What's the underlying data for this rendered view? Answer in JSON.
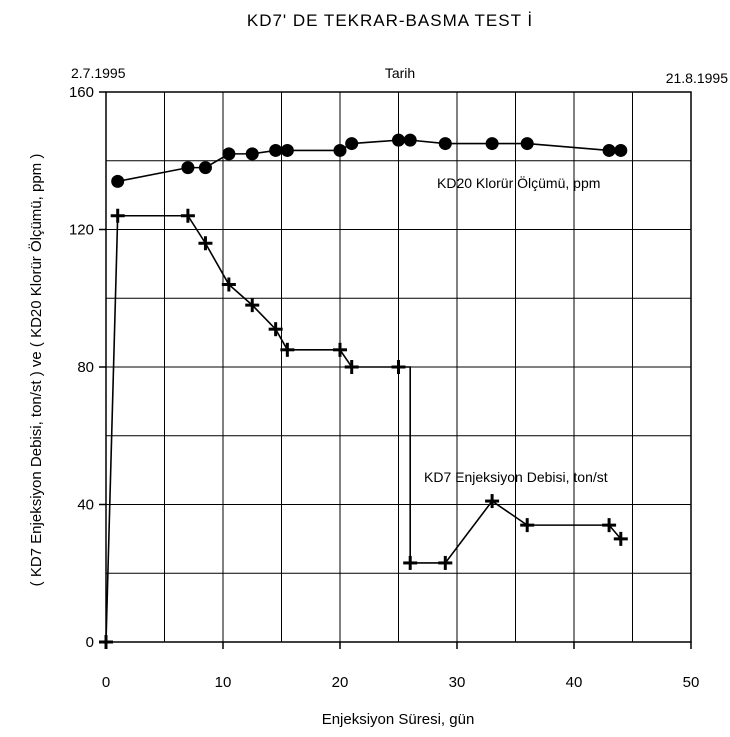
{
  "chart_data": {
    "type": "line",
    "title": "KD7' DE TEKRAR-BASMA TEST İ",
    "top_axis": {
      "label": "Tarih",
      "start": "2.7.1995",
      "end": "21.8.1995"
    },
    "xlabel": "Enjeksiyon Süresi, gün",
    "ylabel": "( KD7 Enjeksiyon Debisi, ton/st ) ve ( KD20 Klorür Ölçümü, ppm )",
    "xlim": [
      0,
      50
    ],
    "ylim": [
      0,
      160
    ],
    "xticks": [
      0,
      10,
      20,
      30,
      40,
      50
    ],
    "yticks": [
      0,
      40,
      80,
      120,
      160
    ],
    "grid": true,
    "series": [
      {
        "name": "KD20 Klorür Ölçümü, ppm",
        "marker": "circle",
        "points": [
          [
            1,
            134
          ],
          [
            7,
            138
          ],
          [
            8.5,
            138
          ],
          [
            10.5,
            142
          ],
          [
            12.5,
            142
          ],
          [
            14.5,
            143
          ],
          [
            15.5,
            143
          ],
          [
            20,
            143
          ],
          [
            21,
            145
          ],
          [
            25,
            146
          ],
          [
            26,
            146
          ],
          [
            29,
            145
          ],
          [
            33,
            145
          ],
          [
            36,
            145
          ],
          [
            43,
            143
          ],
          [
            44,
            143
          ]
        ]
      },
      {
        "name": "KD7 Enjeksiyon Debisi, ton/st",
        "marker": "plus",
        "points": [
          [
            0,
            0
          ],
          [
            1,
            124
          ],
          [
            7,
            124
          ],
          [
            8.5,
            116
          ],
          [
            10.5,
            104
          ],
          [
            12.5,
            98
          ],
          [
            14.5,
            91
          ],
          [
            15.5,
            85
          ],
          [
            20,
            85
          ],
          [
            21,
            80
          ],
          [
            25,
            80
          ],
          [
            26,
            23
          ],
          [
            29,
            23
          ],
          [
            33,
            41
          ],
          [
            36,
            34
          ],
          [
            43,
            34
          ],
          [
            44,
            30
          ]
        ]
      }
    ]
  },
  "labels": {
    "series1_label": "KD20 Klorür Ölçümü, ppm",
    "series2_label": "KD7 Enjeksiyon Debisi, ton/st"
  }
}
